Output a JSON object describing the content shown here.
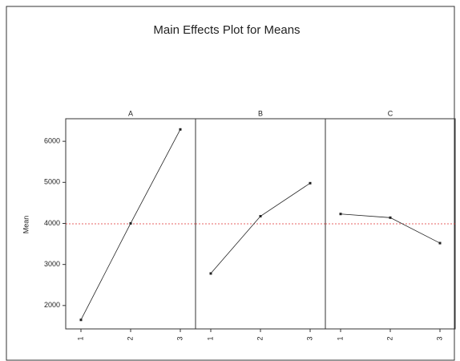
{
  "chart_data": {
    "type": "line",
    "title": "Main Effects Plot for Means",
    "ylabel": "Mean",
    "ylim": [
      1430,
      6550
    ],
    "yticks": [
      2000,
      3000,
      4000,
      5000,
      6000
    ],
    "reference_line": 3990,
    "reference_color": "#e03030",
    "color": "#222222",
    "panels": [
      {
        "name": "A",
        "categories": [
          "1",
          "2",
          "3"
        ],
        "values": [
          1650,
          4000,
          6290
        ]
      },
      {
        "name": "B",
        "categories": [
          "1",
          "2",
          "3"
        ],
        "values": [
          2780,
          4175,
          4980
        ]
      },
      {
        "name": "C",
        "categories": [
          "1",
          "2",
          "3"
        ],
        "values": [
          4230,
          4140,
          3520
        ]
      }
    ]
  }
}
